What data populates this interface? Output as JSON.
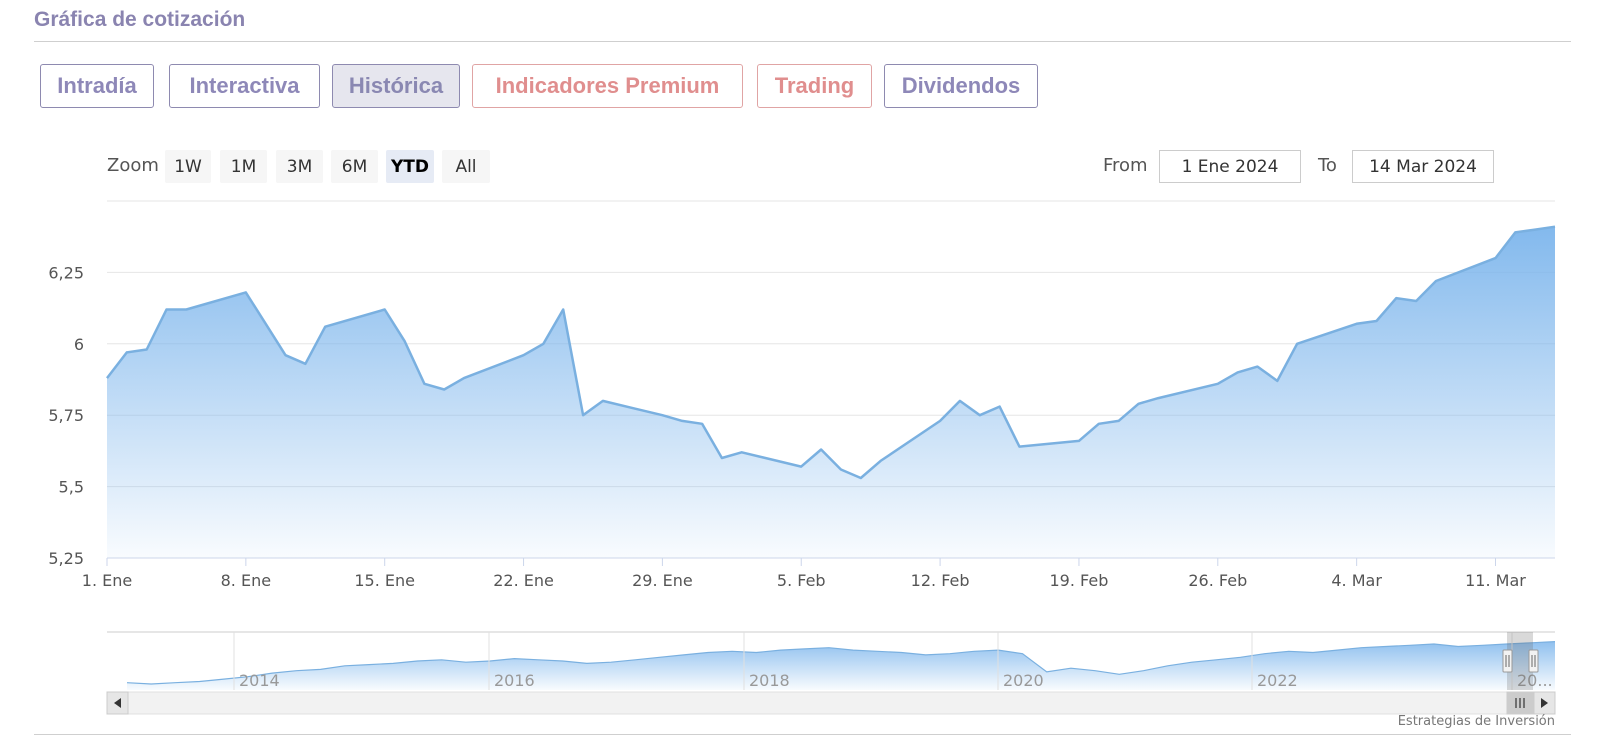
{
  "header": {
    "title": "Gráfica de cotización"
  },
  "tabs": [
    {
      "label": "Intradía",
      "variant": "normal"
    },
    {
      "label": "Interactiva",
      "variant": "normal"
    },
    {
      "label": "Histórica",
      "variant": "active"
    },
    {
      "label": "Indicadores Premium",
      "variant": "premium"
    },
    {
      "label": "Trading",
      "variant": "premium"
    },
    {
      "label": "Dividendos",
      "variant": "normal"
    }
  ],
  "zoom": {
    "label": "Zoom",
    "buttons": [
      "1W",
      "1M",
      "3M",
      "6M",
      "YTD",
      "All"
    ],
    "selected": "YTD"
  },
  "range": {
    "from_label": "From",
    "from_value": "1 Ene 2024",
    "to_label": "To",
    "to_value": "14 Mar 2024"
  },
  "credit": "Estrategias de Inversión",
  "colors": {
    "accent": "#8e88b8",
    "premium": "#e08e8e",
    "series_line": "#7ab0e0",
    "series_fill_top": "#7cb5ec",
    "grid": "#e6e6e6"
  },
  "icons": {
    "scroll_left": "triangle-left",
    "scroll_right": "triangle-right",
    "handle": "grip-lines"
  },
  "chart_data": {
    "type": "area",
    "title": "",
    "xlabel": "",
    "ylabel": "",
    "x_start": "2024-01-01",
    "x_end": "2024-03-14",
    "ylim": [
      5.25,
      6.5
    ],
    "y_ticks": [
      "5,25",
      "5,5",
      "5,75",
      "6",
      "6,25"
    ],
    "y_tick_values": [
      5.25,
      5.5,
      5.75,
      6.0,
      6.25
    ],
    "x_ticks": [
      {
        "date": "2024-01-01",
        "label": "1. Ene"
      },
      {
        "date": "2024-01-08",
        "label": "8. Ene"
      },
      {
        "date": "2024-01-15",
        "label": "15. Ene"
      },
      {
        "date": "2024-01-22",
        "label": "22. Ene"
      },
      {
        "date": "2024-01-29",
        "label": "29. Ene"
      },
      {
        "date": "2024-02-05",
        "label": "5. Feb"
      },
      {
        "date": "2024-02-12",
        "label": "12. Feb"
      },
      {
        "date": "2024-02-19",
        "label": "19. Feb"
      },
      {
        "date": "2024-02-26",
        "label": "26. Feb"
      },
      {
        "date": "2024-03-04",
        "label": "4. Mar"
      },
      {
        "date": "2024-03-11",
        "label": "11. Mar"
      }
    ],
    "series": [
      {
        "points": [
          [
            "2024-01-01",
            5.88
          ],
          [
            "2024-01-02",
            5.97
          ],
          [
            "2024-01-03",
            5.98
          ],
          [
            "2024-01-04",
            6.12
          ],
          [
            "2024-01-05",
            6.12
          ],
          [
            "2024-01-08",
            6.18
          ],
          [
            "2024-01-09",
            6.07
          ],
          [
            "2024-01-10",
            5.96
          ],
          [
            "2024-01-11",
            5.93
          ],
          [
            "2024-01-12",
            6.06
          ],
          [
            "2024-01-15",
            6.12
          ],
          [
            "2024-01-16",
            6.01
          ],
          [
            "2024-01-17",
            5.86
          ],
          [
            "2024-01-18",
            5.84
          ],
          [
            "2024-01-19",
            5.88
          ],
          [
            "2024-01-22",
            5.96
          ],
          [
            "2024-01-23",
            6.0
          ],
          [
            "2024-01-24",
            6.12
          ],
          [
            "2024-01-25",
            5.75
          ],
          [
            "2024-01-26",
            5.8
          ],
          [
            "2024-01-29",
            5.75
          ],
          [
            "2024-01-30",
            5.73
          ],
          [
            "2024-01-31",
            5.72
          ],
          [
            "2024-02-01",
            5.6
          ],
          [
            "2024-02-02",
            5.62
          ],
          [
            "2024-02-05",
            5.57
          ],
          [
            "2024-02-06",
            5.63
          ],
          [
            "2024-02-07",
            5.56
          ],
          [
            "2024-02-08",
            5.53
          ],
          [
            "2024-02-09",
            5.59
          ],
          [
            "2024-02-12",
            5.73
          ],
          [
            "2024-02-13",
            5.8
          ],
          [
            "2024-02-14",
            5.75
          ],
          [
            "2024-02-15",
            5.78
          ],
          [
            "2024-02-16",
            5.64
          ],
          [
            "2024-02-19",
            5.66
          ],
          [
            "2024-02-20",
            5.72
          ],
          [
            "2024-02-21",
            5.73
          ],
          [
            "2024-02-22",
            5.79
          ],
          [
            "2024-02-23",
            5.81
          ],
          [
            "2024-02-26",
            5.86
          ],
          [
            "2024-02-27",
            5.9
          ],
          [
            "2024-02-28",
            5.92
          ],
          [
            "2024-02-29",
            5.87
          ],
          [
            "2024-03-01",
            6.0
          ],
          [
            "2024-03-04",
            6.07
          ],
          [
            "2024-03-05",
            6.08
          ],
          [
            "2024-03-06",
            6.16
          ],
          [
            "2024-03-07",
            6.15
          ],
          [
            "2024-03-08",
            6.22
          ],
          [
            "2024-03-11",
            6.3
          ],
          [
            "2024-03-12",
            6.39
          ],
          [
            "2024-03-13",
            6.4
          ],
          [
            "2024-03-14",
            6.41
          ]
        ]
      }
    ],
    "navigator": {
      "x_ticks": [
        "2014",
        "2016",
        "2018",
        "2020",
        "2022",
        "20..."
      ],
      "values": [
        3.1,
        3.0,
        3.1,
        3.2,
        3.4,
        3.6,
        3.9,
        4.1,
        4.2,
        4.5,
        4.6,
        4.7,
        4.9,
        5.0,
        4.8,
        4.9,
        5.1,
        5.0,
        4.9,
        4.7,
        4.8,
        5.0,
        5.2,
        5.4,
        5.6,
        5.7,
        5.6,
        5.8,
        5.9,
        6.0,
        5.8,
        5.7,
        5.6,
        5.4,
        5.5,
        5.7,
        5.8,
        5.5,
        4.0,
        4.3,
        4.1,
        3.8,
        4.1,
        4.5,
        4.8,
        5.0,
        5.2,
        5.5,
        5.7,
        5.6,
        5.8,
        6.0,
        6.1,
        6.2,
        6.3,
        6.1,
        6.2,
        6.3,
        6.4,
        6.5
      ]
    }
  }
}
